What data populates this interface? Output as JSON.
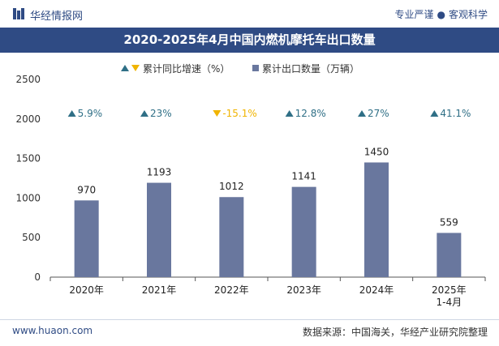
{
  "header": {
    "brand": "华经情报网",
    "tagline_left": "专业严谨",
    "tagline_right": "客观科学"
  },
  "footer": {
    "url": "www.huaon.com",
    "source": "数据来源：中国海关，华经产业研究院整理"
  },
  "colors": {
    "brand": "#2f4b84",
    "bar": "#69779e",
    "growth_positive": "#2f6f86",
    "growth_negative": "#f0b400",
    "axis": "#555555"
  },
  "chart_data": {
    "type": "bar",
    "title": "2020-2025年4月中国内燃机摩托车出口数量",
    "categories": [
      "2020年",
      "2021年",
      "2022年",
      "2023年",
      "2024年",
      "2025年\n1-4月"
    ],
    "series": [
      {
        "name": "累计出口数量（万辆）",
        "values": [
          970,
          1193,
          1012,
          1141,
          1450,
          559
        ]
      }
    ],
    "growth_series": {
      "name": "累计同比增速（%）",
      "values": [
        5.9,
        23,
        -15.1,
        12.8,
        27,
        41.1
      ],
      "labels": [
        "5.9%",
        "23%",
        "-15.1%",
        "12.8%",
        "27%",
        "41.1%"
      ]
    },
    "ylim": [
      0,
      2500
    ],
    "yticks": [
      0,
      500,
      1000,
      1500,
      2000,
      2500
    ],
    "xlabel": "",
    "ylabel": "",
    "grid": false,
    "legend_position": "top-center"
  }
}
